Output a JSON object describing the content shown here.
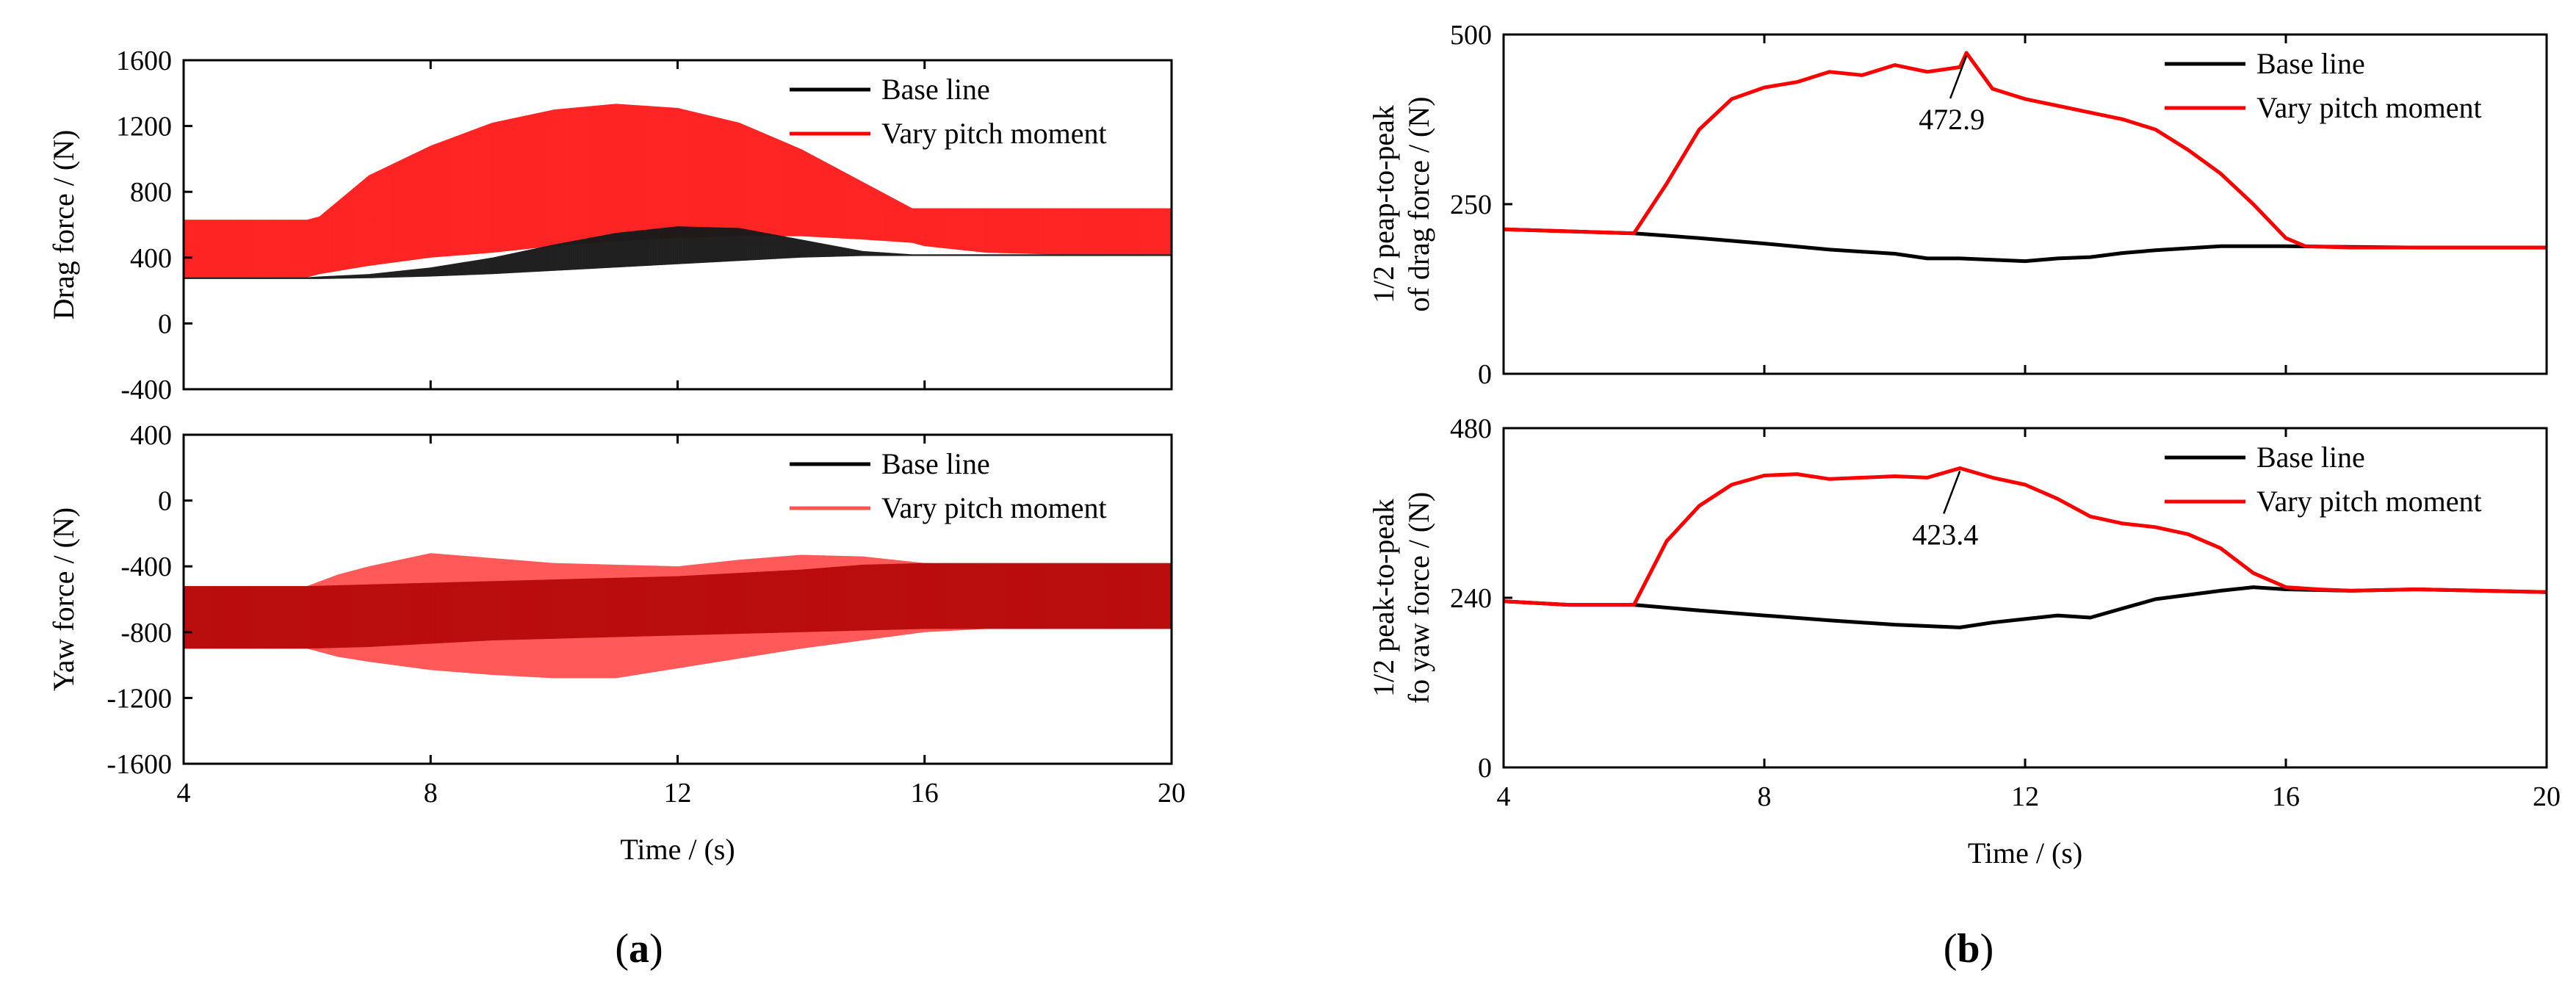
{
  "panels": {
    "a": "(a)",
    "b": "(b)"
  },
  "colors": {
    "base": "#000000",
    "vary": "#ff0000",
    "band_red": "#ff1f1f",
    "band_black": "#1a1a1a",
    "band_dark_red": "#b80c0c",
    "band_light_red": "#ff5555"
  },
  "chart_data": [
    {
      "id": "drag_force",
      "type": "area",
      "xlabel": "Time / (s)",
      "ylabel": "Drag force / (N)",
      "xlim": [
        4,
        20
      ],
      "ylim": [
        -400,
        1600
      ],
      "xticks": [
        4,
        8,
        12,
        16,
        20
      ],
      "yticks": [
        -400,
        0,
        400,
        800,
        1200,
        1600
      ],
      "legend": [
        "Base line",
        "Vary pitch moment"
      ],
      "legend_position": "top-right",
      "x": [
        4,
        6,
        6.2,
        7,
        8,
        9,
        10,
        11,
        12,
        13,
        14,
        15,
        15.8,
        16,
        17,
        18,
        20
      ],
      "series": [
        {
          "name": "Vary pitch moment",
          "upper": [
            630,
            630,
            650,
            900,
            1080,
            1220,
            1300,
            1335,
            1310,
            1220,
            1060,
            860,
            700,
            700,
            700,
            700,
            700
          ],
          "lower": [
            280,
            280,
            300,
            350,
            400,
            430,
            470,
            500,
            520,
            530,
            530,
            510,
            490,
            470,
            430,
            420,
            420
          ]
        },
        {
          "name": "Base line",
          "upper": [
            280,
            280,
            285,
            300,
            340,
            400,
            480,
            550,
            590,
            580,
            510,
            440,
            420,
            420,
            420,
            420,
            420
          ],
          "lower": [
            270,
            270,
            270,
            275,
            285,
            300,
            320,
            340,
            360,
            380,
            400,
            410,
            410,
            410,
            410,
            410,
            410
          ]
        }
      ]
    },
    {
      "id": "yaw_force",
      "type": "area",
      "xlabel": "Time / (s)",
      "ylabel": "Yaw force / (N)",
      "xlim": [
        4,
        20
      ],
      "ylim": [
        -1600,
        400
      ],
      "xticks": [
        4,
        8,
        12,
        16,
        20
      ],
      "yticks": [
        -1600,
        -1200,
        -800,
        -400,
        0,
        400
      ],
      "legend": [
        "Base line",
        "Vary pitch moment"
      ],
      "legend_position": "top-right",
      "x": [
        4,
        6,
        6.5,
        7,
        8,
        9,
        10,
        11,
        12,
        13,
        14,
        15,
        16,
        17,
        20
      ],
      "series": [
        {
          "name": "Vary pitch moment",
          "upper": [
            -520,
            -520,
            -450,
            -400,
            -320,
            -350,
            -380,
            -390,
            -400,
            -360,
            -330,
            -340,
            -380,
            -390,
            -390
          ],
          "lower": [
            -900,
            -900,
            -950,
            -980,
            -1030,
            -1060,
            -1080,
            -1080,
            -1020,
            -960,
            -900,
            -850,
            -800,
            -780,
            -780
          ]
        },
        {
          "name": "Base line",
          "upper": [
            -520,
            -520,
            -515,
            -510,
            -500,
            -490,
            -480,
            -470,
            -460,
            -440,
            -420,
            -390,
            -380,
            -380,
            -380
          ],
          "lower": [
            -900,
            -900,
            -895,
            -890,
            -870,
            -850,
            -840,
            -830,
            -820,
            -810,
            -800,
            -790,
            -780,
            -780,
            -780
          ]
        }
      ]
    },
    {
      "id": "half_p2p_drag",
      "type": "line",
      "xlabel": "Time / (s)",
      "ylabel": [
        "1/2 peap-to-peak",
        "of drag force / (N)"
      ],
      "xlim": [
        4,
        20
      ],
      "ylim": [
        0,
        500
      ],
      "xticks": [
        4,
        8,
        12,
        16,
        20
      ],
      "yticks": [
        0,
        250,
        500
      ],
      "legend": [
        "Base line",
        "Vary pitch moment"
      ],
      "legend_position": "top-right",
      "annotation": {
        "text": "472.9",
        "x": 11.1,
        "y": 472.9
      },
      "series": [
        {
          "name": "Base line",
          "x": [
            4,
            5,
            6,
            7,
            8,
            9,
            10,
            10.5,
            11,
            11.5,
            12,
            12.5,
            13,
            13.5,
            14,
            15,
            16,
            17,
            18,
            19,
            20
          ],
          "y": [
            213,
            210,
            207,
            200,
            192,
            183,
            177,
            170,
            170,
            168,
            166,
            170,
            172,
            178,
            182,
            188,
            188,
            187,
            186,
            186,
            186
          ]
        },
        {
          "name": "Vary pitch moment",
          "x": [
            4,
            5,
            6,
            6.5,
            7,
            7.5,
            8,
            8.5,
            9,
            9.5,
            10,
            10.5,
            11,
            11.1,
            11.5,
            12,
            12.5,
            13,
            13.5,
            14,
            14.5,
            15,
            15.5,
            16,
            16.3,
            17,
            18,
            19,
            20
          ],
          "y": [
            213,
            210,
            207,
            280,
            360,
            405,
            422,
            430,
            445,
            440,
            455,
            445,
            452,
            472.9,
            420,
            405,
            395,
            385,
            375,
            360,
            330,
            295,
            250,
            200,
            188,
            186,
            186,
            186,
            186
          ]
        }
      ]
    },
    {
      "id": "half_p2p_yaw",
      "type": "line",
      "xlabel": "Time / (s)",
      "ylabel": [
        "1/2 peak-to-peak",
        "fo yaw force / (N)"
      ],
      "xlim": [
        4,
        20
      ],
      "ylim": [
        0,
        480
      ],
      "xticks": [
        4,
        8,
        12,
        16,
        20
      ],
      "yticks": [
        0,
        240,
        480
      ],
      "legend": [
        "Base line",
        "Vary pitch moment"
      ],
      "legend_position": "top-right",
      "annotation": {
        "text": "423.4",
        "x": 11,
        "y": 423.4
      },
      "series": [
        {
          "name": "Base line",
          "x": [
            4,
            5,
            6,
            7,
            8,
            9,
            10,
            10.5,
            11,
            11.5,
            12,
            12.5,
            13,
            13.5,
            14,
            15,
            15.5,
            16,
            17,
            18,
            19,
            20
          ],
          "y": [
            235,
            230,
            230,
            222,
            215,
            208,
            202,
            200,
            198,
            205,
            210,
            215,
            212,
            225,
            238,
            250,
            255,
            252,
            250,
            252,
            250,
            248
          ]
        },
        {
          "name": "Vary pitch moment",
          "x": [
            4,
            5,
            6,
            6.5,
            7,
            7.5,
            8,
            8.5,
            9,
            9.5,
            10,
            10.5,
            11,
            11.5,
            12,
            12.5,
            13,
            13.5,
            14,
            14.5,
            15,
            15.5,
            16,
            16.5,
            17,
            18,
            19,
            20
          ],
          "y": [
            235,
            230,
            230,
            320,
            370,
            400,
            413,
            415,
            408,
            410,
            412,
            410,
            423.4,
            410,
            400,
            380,
            355,
            345,
            340,
            330,
            310,
            275,
            255,
            252,
            250,
            252,
            250,
            248
          ]
        }
      ]
    }
  ]
}
